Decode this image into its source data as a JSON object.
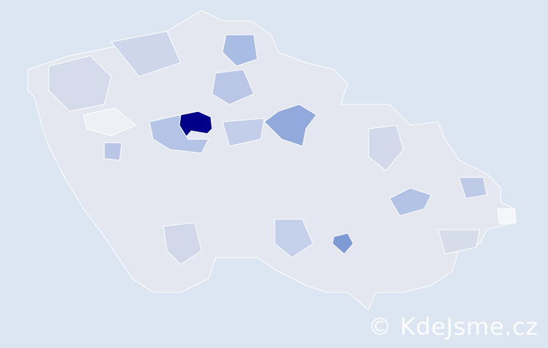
{
  "watermark": "© KdeJsme.cz",
  "colors": {
    "background": "#dce6f2",
    "base": "#e4e7ef",
    "level_max": "#00008b",
    "level_high": "#7f9bd6",
    "level_mid": "#a9bde4",
    "level_low": "#cdd6ea",
    "level_min": "#eef0f5"
  }
}
